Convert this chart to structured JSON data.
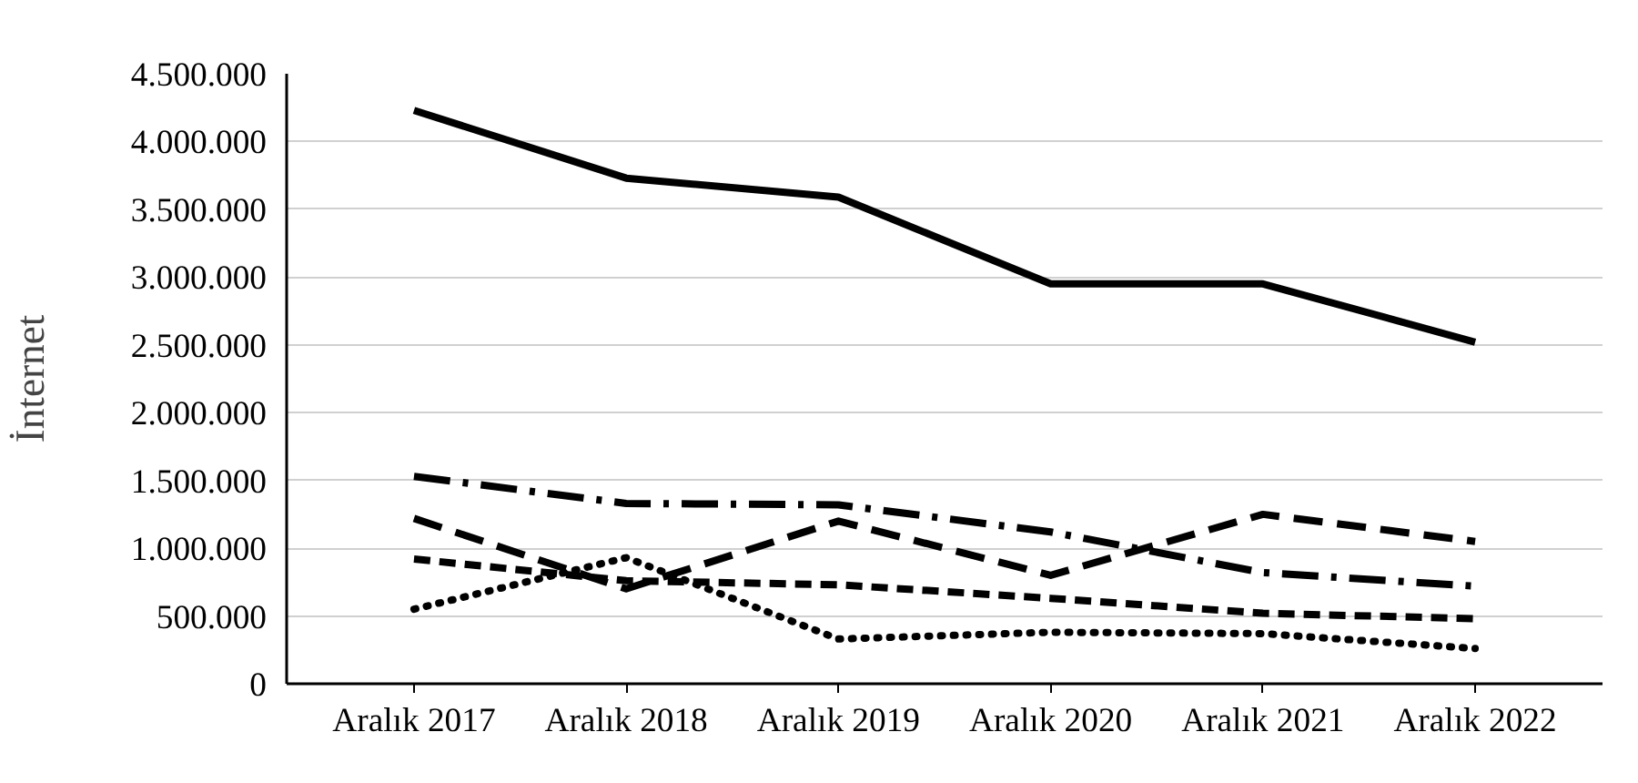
{
  "chart_data": {
    "type": "line",
    "ylabel": "İnternet",
    "categories": [
      "Aralık 2017",
      "Aralık 2018",
      "Aralık 2019",
      "Aralık 2020",
      "Aralık 2021",
      "Aralık 2022"
    ],
    "series": [
      {
        "color": "#000000",
        "line_style": "solid",
        "values": [
          4230000,
          3730000,
          3590000,
          2950000,
          2950000,
          2520000
        ]
      },
      {
        "color": "#000000",
        "line_style": "dashdot",
        "values": [
          1530000,
          1330000,
          1320000,
          1120000,
          820000,
          720000
        ]
      },
      {
        "color": "#000000",
        "line_style": "longdash",
        "values": [
          1220000,
          700000,
          1200000,
          800000,
          1250000,
          1050000
        ]
      },
      {
        "color": "#000000",
        "line_style": "dashed",
        "values": [
          920000,
          760000,
          730000,
          630000,
          520000,
          480000
        ]
      },
      {
        "color": "#000000",
        "line_style": "dotted",
        "values": [
          550000,
          930000,
          330000,
          380000,
          370000,
          260000
        ]
      }
    ],
    "ylim": [
      0,
      4500000
    ],
    "yticks": [
      {
        "value": 0,
        "label": "0"
      },
      {
        "value": 500000,
        "label": "500.000"
      },
      {
        "value": 1000000,
        "label": "1.000.000"
      },
      {
        "value": 1500000,
        "label": "1.500.000"
      },
      {
        "value": 2000000,
        "label": "2.000.000"
      },
      {
        "value": 2500000,
        "label": "2.500.000"
      },
      {
        "value": 3000000,
        "label": "3.000.000"
      },
      {
        "value": 3500000,
        "label": "3.500.000"
      },
      {
        "value": 4000000,
        "label": "4.000.000"
      },
      {
        "value": 4500000,
        "label": "4.500.000"
      }
    ],
    "grid": "y",
    "marker": "none"
  }
}
